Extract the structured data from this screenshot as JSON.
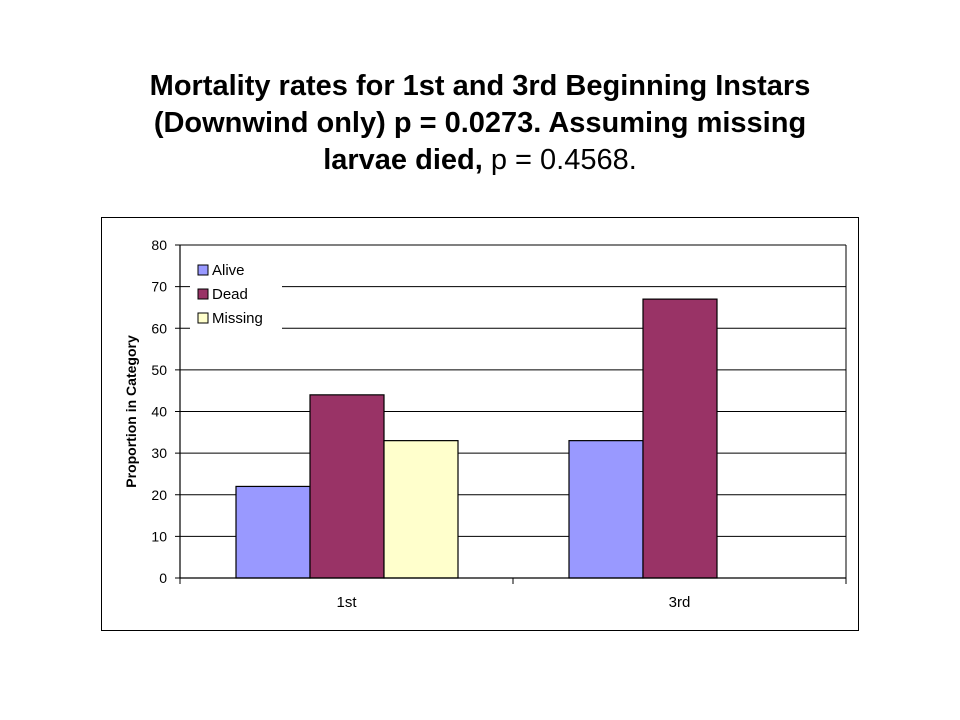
{
  "title": {
    "line1": "Mortality rates for 1st and 3rd Beginning Instars",
    "line2": "(Downwind only) p = 0.0273. Assuming missing",
    "line3_bold": "larvae died,",
    "line3_normal": " p = 0.4568."
  },
  "chart_data": {
    "type": "bar",
    "categories": [
      "1st",
      "3rd"
    ],
    "series": [
      {
        "name": "Alive",
        "values": [
          22,
          33
        ],
        "color": "#9999ff"
      },
      {
        "name": "Dead",
        "values": [
          44,
          67
        ],
        "color": "#993366"
      },
      {
        "name": "Missing",
        "values": [
          33,
          0
        ],
        "color": "#ffffcc"
      }
    ],
    "ylabel": "Proportion in Category",
    "xlabel": "",
    "ylim": [
      0,
      80
    ],
    "yticks": [
      0,
      10,
      20,
      30,
      40,
      50,
      60,
      70,
      80
    ],
    "grid": true,
    "legend_position": "top-left"
  }
}
